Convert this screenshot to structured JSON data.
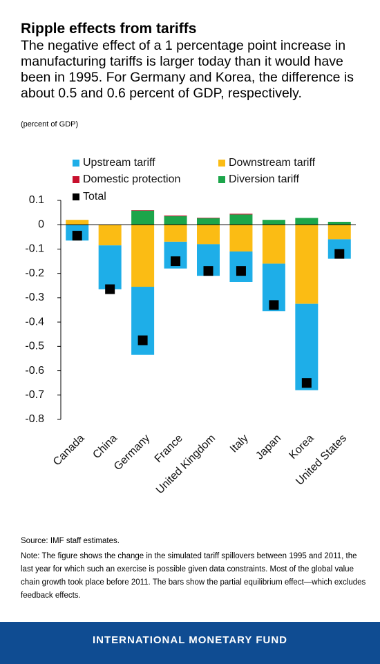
{
  "chart_data": {
    "type": "bar",
    "title": "Ripple effects from tariffs",
    "subtitle": "The negative effect of a 1 percentage point increase in manufacturing tariffs is larger today than it would have been in 1995. For Germany and Korea, the difference is about 0.5 and 0.6 percent of GDP, respectively.",
    "unit": "(percent of GDP)",
    "categories": [
      "Canada",
      "China",
      "Germany",
      "France",
      "United Kingdom",
      "Italy",
      "Japan",
      "Korea",
      "United States"
    ],
    "series": [
      {
        "name": "Upstream tariff",
        "color": "#1eaee8",
        "values": [
          -0.065,
          -0.18,
          -0.28,
          -0.11,
          -0.13,
          -0.125,
          -0.195,
          -0.355,
          -0.08
        ]
      },
      {
        "name": "Downstream tariff",
        "color": "#fbbc14",
        "values": [
          0.02,
          -0.085,
          -0.255,
          -0.07,
          -0.08,
          -0.11,
          -0.16,
          -0.325,
          -0.06
        ]
      },
      {
        "name": "Domestic protection",
        "color": "#c8102e",
        "values": [
          0,
          0,
          0.002,
          0.003,
          0.002,
          0.003,
          0,
          0,
          0
        ]
      },
      {
        "name": "Diversion tariff",
        "color": "#1ca54a",
        "values": [
          0,
          0,
          0.058,
          0.035,
          0.027,
          0.042,
          0.02,
          0.028,
          0.012
        ]
      },
      {
        "name": "Total",
        "color": "#000000",
        "type": "marker",
        "values": [
          -0.045,
          -0.265,
          -0.475,
          -0.15,
          -0.19,
          -0.19,
          -0.33,
          -0.65,
          -0.12
        ]
      }
    ],
    "ylim": [
      -0.8,
      0.1
    ],
    "yticks": [
      0.1,
      0,
      -0.1,
      -0.2,
      -0.3,
      -0.4,
      -0.5,
      -0.6,
      -0.7,
      -0.8
    ],
    "source": "Source: IMF staff estimates.",
    "note": "Note: The figure shows the change in the simulated tariff spillovers between 1995 and 2011, the last year for which such an exercise is possible given data constraints. Most of the global value chain growth took place before 2011. The bars show the partial equilibrium effect—which excludes feedback effects.",
    "footer": "INTERNATIONAL MONETARY FUND"
  }
}
